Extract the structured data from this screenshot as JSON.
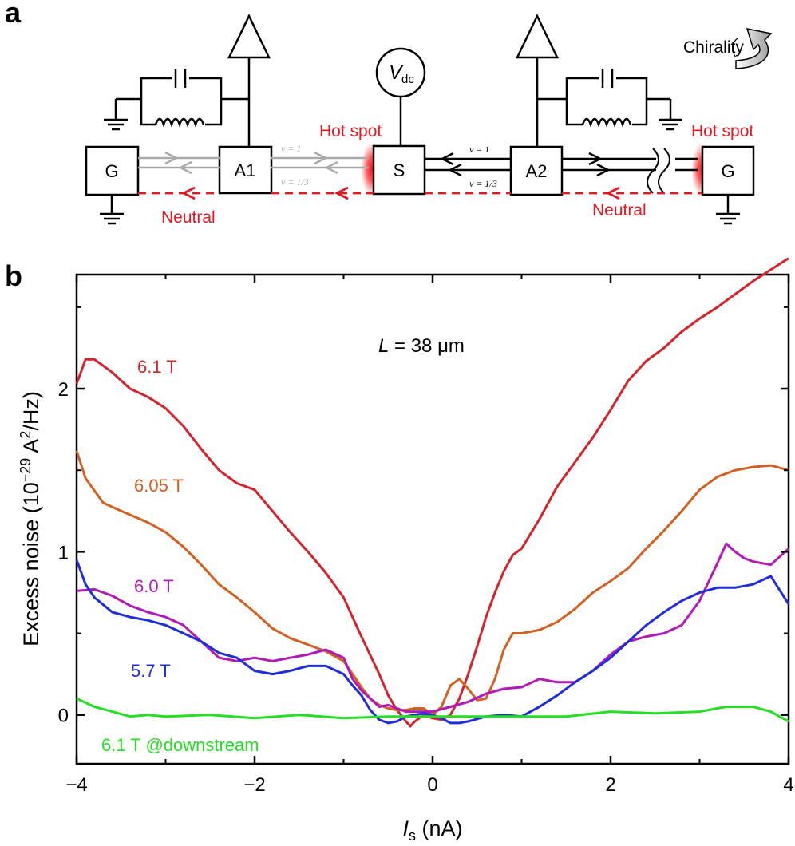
{
  "panel_a": {
    "letter": "a",
    "contacts": {
      "left_ground": "G",
      "amp1": "A1",
      "source": "S",
      "amp2": "A2",
      "right_ground": "G"
    },
    "source_voltage": {
      "symbol": "V",
      "subscript": "dc"
    },
    "chirality_label": "Chirality",
    "hot_spot_left": "Hot spot",
    "hot_spot_right": "Hot spot",
    "neutral_left": "Neutral",
    "neutral_right": "Neutral",
    "edge_labels": {
      "left_nu1": "ν = 1",
      "left_nu13": "ν = 1/3",
      "right_nu1": "ν = 1",
      "right_nu13": "ν = 1/3"
    },
    "colors": {
      "red": "#e8161e",
      "gray": "#aaaaaa",
      "black": "#000000"
    }
  },
  "panel_b": {
    "letter": "b"
  },
  "chart_data": {
    "type": "line",
    "title": "",
    "annotation": {
      "italic": "L",
      "rest": " = 38 μm"
    },
    "xlabel": {
      "symbol": "I",
      "subscript": "s",
      "unit": " (nA)"
    },
    "ylabel": {
      "text": "Excess noise (10",
      "exp1": "−29",
      "mid": " A",
      "exp2": "2",
      "end": "/Hz)"
    },
    "xlim": [
      -4,
      4
    ],
    "ylim": [
      -0.3,
      2.7
    ],
    "xticks": [
      -4,
      -2,
      0,
      2,
      4
    ],
    "xtick_labels": [
      "−4",
      "−2",
      "0",
      "2",
      "4"
    ],
    "yticks": [
      0,
      1,
      2
    ],
    "ytick_labels": [
      "0",
      "1",
      "2"
    ],
    "series": [
      {
        "name": "6.1 T",
        "color": "#d6222b",
        "x": [
          -4.0,
          -3.9,
          -3.8,
          -3.6,
          -3.4,
          -3.2,
          -3.0,
          -2.8,
          -2.6,
          -2.4,
          -2.2,
          -2.0,
          -1.8,
          -1.6,
          -1.4,
          -1.2,
          -1.0,
          -0.8,
          -0.6,
          -0.5,
          -0.4,
          -0.3,
          -0.25,
          -0.2,
          -0.1,
          0.0,
          0.1,
          0.2,
          0.3,
          0.4,
          0.5,
          0.6,
          0.7,
          0.8,
          0.9,
          1.0,
          1.2,
          1.4,
          1.6,
          1.8,
          2.0,
          2.2,
          2.4,
          2.6,
          2.8,
          3.0,
          3.2,
          3.4,
          3.6,
          3.8,
          4.0
        ],
        "y": [
          2.03,
          2.18,
          2.18,
          2.1,
          2.0,
          1.95,
          1.88,
          1.77,
          1.63,
          1.5,
          1.42,
          1.38,
          1.25,
          1.12,
          1.0,
          0.87,
          0.72,
          0.48,
          0.25,
          0.12,
          0.03,
          -0.04,
          -0.07,
          -0.04,
          0.0,
          -0.02,
          -0.03,
          0.0,
          0.1,
          0.25,
          0.42,
          0.6,
          0.75,
          0.88,
          0.98,
          1.02,
          1.2,
          1.4,
          1.55,
          1.7,
          1.87,
          2.05,
          2.17,
          2.25,
          2.35,
          2.43,
          2.5,
          2.58,
          2.66,
          2.73,
          2.8
        ]
      },
      {
        "name": "6.05 T",
        "color": "#d35f20",
        "x": [
          -4.0,
          -3.9,
          -3.7,
          -3.5,
          -3.2,
          -3.0,
          -2.8,
          -2.6,
          -2.4,
          -2.2,
          -2.0,
          -1.8,
          -1.6,
          -1.4,
          -1.2,
          -1.0,
          -0.9,
          -0.8,
          -0.7,
          -0.6,
          -0.5,
          -0.4,
          -0.3,
          -0.2,
          -0.1,
          0.0,
          0.1,
          0.2,
          0.3,
          0.4,
          0.5,
          0.6,
          0.7,
          0.8,
          0.9,
          1.0,
          1.2,
          1.4,
          1.6,
          1.8,
          2.0,
          2.2,
          2.4,
          2.6,
          2.8,
          3.0,
          3.2,
          3.4,
          3.6,
          3.8,
          4.0
        ],
        "y": [
          1.62,
          1.45,
          1.3,
          1.25,
          1.18,
          1.12,
          1.03,
          0.92,
          0.8,
          0.72,
          0.63,
          0.53,
          0.47,
          0.43,
          0.39,
          0.33,
          0.25,
          0.17,
          0.1,
          0.06,
          0.04,
          0.03,
          0.03,
          0.04,
          0.04,
          0.0,
          0.05,
          0.18,
          0.22,
          0.16,
          0.09,
          0.1,
          0.22,
          0.4,
          0.5,
          0.5,
          0.52,
          0.57,
          0.65,
          0.75,
          0.82,
          0.9,
          1.02,
          1.13,
          1.25,
          1.38,
          1.46,
          1.5,
          1.52,
          1.53,
          1.5
        ]
      },
      {
        "name": "6.0 T",
        "color": "#b219b8",
        "x": [
          -4.0,
          -3.8,
          -3.6,
          -3.4,
          -3.2,
          -3.0,
          -2.8,
          -2.6,
          -2.4,
          -2.2,
          -2.0,
          -1.8,
          -1.6,
          -1.4,
          -1.2,
          -1.0,
          -0.9,
          -0.8,
          -0.7,
          -0.6,
          -0.5,
          -0.4,
          -0.3,
          -0.2,
          -0.1,
          0.0,
          0.2,
          0.4,
          0.6,
          0.8,
          1.0,
          1.2,
          1.4,
          1.6,
          1.8,
          2.0,
          2.2,
          2.4,
          2.6,
          2.8,
          3.0,
          3.2,
          3.3,
          3.4,
          3.5,
          3.6,
          3.8,
          4.0
        ],
        "y": [
          0.76,
          0.77,
          0.73,
          0.67,
          0.63,
          0.6,
          0.55,
          0.45,
          0.35,
          0.33,
          0.35,
          0.33,
          0.35,
          0.37,
          0.4,
          0.35,
          0.22,
          0.15,
          0.1,
          0.05,
          0.06,
          0.04,
          0.02,
          0.02,
          0.02,
          0.02,
          0.05,
          0.08,
          0.13,
          0.16,
          0.17,
          0.22,
          0.2,
          0.2,
          0.27,
          0.37,
          0.45,
          0.48,
          0.5,
          0.55,
          0.7,
          0.93,
          1.05,
          1.0,
          0.96,
          0.94,
          0.92,
          1.02
        ]
      },
      {
        "name": "5.7 T",
        "color": "#1f2ddd",
        "x": [
          -4.0,
          -3.9,
          -3.8,
          -3.6,
          -3.4,
          -3.2,
          -3.0,
          -2.8,
          -2.6,
          -2.4,
          -2.2,
          -2.0,
          -1.8,
          -1.6,
          -1.4,
          -1.2,
          -1.0,
          -0.9,
          -0.8,
          -0.7,
          -0.6,
          -0.5,
          -0.4,
          -0.3,
          -0.2,
          -0.1,
          0.0,
          0.1,
          0.2,
          0.3,
          0.4,
          0.6,
          0.8,
          1.0,
          1.2,
          1.4,
          1.6,
          1.8,
          2.0,
          2.2,
          2.4,
          2.6,
          2.8,
          3.0,
          3.2,
          3.4,
          3.6,
          3.8,
          4.0
        ],
        "y": [
          0.95,
          0.8,
          0.72,
          0.63,
          0.6,
          0.58,
          0.55,
          0.5,
          0.45,
          0.38,
          0.35,
          0.27,
          0.25,
          0.27,
          0.3,
          0.3,
          0.25,
          0.18,
          0.12,
          0.03,
          -0.03,
          -0.05,
          -0.04,
          -0.01,
          0.0,
          0.01,
          0.0,
          -0.02,
          -0.05,
          -0.05,
          -0.04,
          -0.01,
          0.0,
          -0.01,
          0.05,
          0.12,
          0.2,
          0.27,
          0.35,
          0.45,
          0.55,
          0.63,
          0.7,
          0.75,
          0.78,
          0.78,
          0.8,
          0.85,
          0.68
        ]
      },
      {
        "name": "6.1 T @downstream",
        "color": "#23e022",
        "x": [
          -4.0,
          -3.8,
          -3.6,
          -3.4,
          -3.2,
          -3.0,
          -2.5,
          -2.0,
          -1.5,
          -1.0,
          -0.5,
          0.0,
          0.5,
          1.0,
          1.5,
          2.0,
          2.5,
          3.0,
          3.3,
          3.6,
          3.8,
          4.0
        ],
        "y": [
          0.1,
          0.05,
          0.02,
          -0.01,
          0.0,
          -0.01,
          0.0,
          -0.02,
          0.0,
          -0.02,
          -0.01,
          -0.01,
          -0.01,
          -0.01,
          -0.01,
          0.02,
          0.01,
          0.02,
          0.05,
          0.05,
          0.02,
          -0.04
        ]
      }
    ]
  }
}
